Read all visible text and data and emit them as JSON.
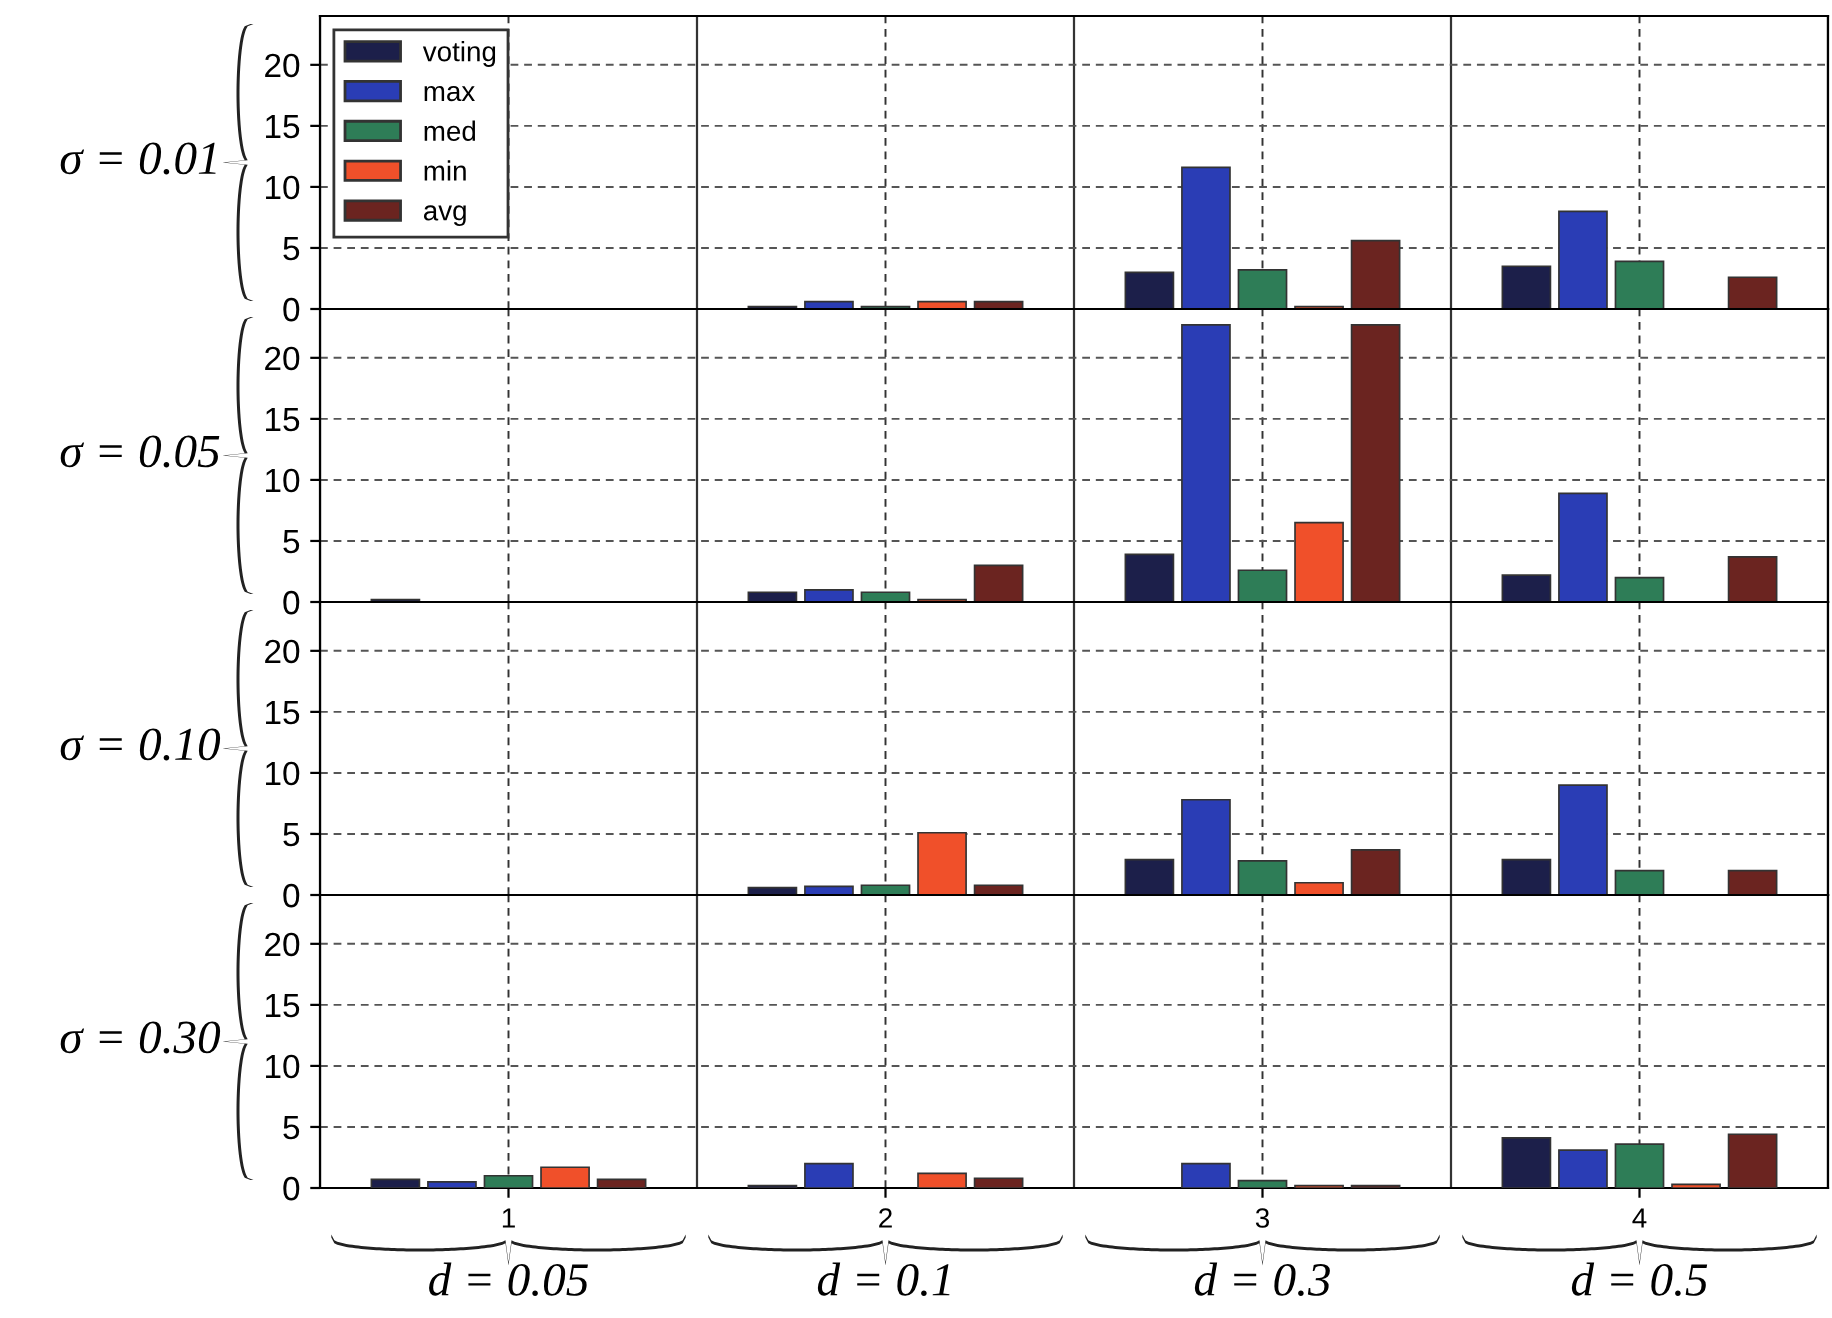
{
  "chart_data": [
    {
      "type": "bar",
      "ylabel": "σ = 0.01",
      "categories": [
        "1",
        "2",
        "3",
        "4"
      ],
      "ylim": [
        0,
        24
      ],
      "yticks": [
        0,
        5,
        10,
        15,
        20
      ],
      "grid": true,
      "legend": "top left",
      "tick_labels": "y",
      "series": [
        {
          "name": "voting",
          "color": "#1c1f4a",
          "values": [
            null,
            0.2,
            3.0,
            3.5
          ]
        },
        {
          "name": "max",
          "color": "#2a3db5",
          "values": [
            null,
            0.6,
            11.6,
            8.0
          ]
        },
        {
          "name": "med",
          "color": "#2e7d57",
          "values": [
            null,
            0.2,
            3.2,
            3.9
          ]
        },
        {
          "name": "min",
          "color": "#f0502a",
          "values": [
            null,
            0.6,
            0.2,
            null
          ]
        },
        {
          "name": "avg",
          "color": "#6b2420",
          "values": [
            null,
            0.6,
            5.6,
            2.6
          ]
        }
      ]
    },
    {
      "type": "bar",
      "ylabel": "σ = 0.05",
      "categories": [
        "1",
        "2",
        "3",
        "4"
      ],
      "ylim": [
        0,
        24
      ],
      "yticks": [
        0,
        5,
        10,
        15,
        20
      ],
      "grid": true,
      "tick_labels": "y",
      "series": [
        {
          "color": "#1c1f4a",
          "values": [
            0.2,
            0.8,
            3.9,
            2.2
          ]
        },
        {
          "color": "#2a3db5",
          "values": [
            null,
            1.0,
            22.7,
            8.9
          ]
        },
        {
          "color": "#2e7d57",
          "values": [
            null,
            0.8,
            2.6,
            2.0
          ]
        },
        {
          "color": "#f0502a",
          "values": [
            null,
            0.2,
            6.5,
            null
          ]
        },
        {
          "color": "#6b2420",
          "values": [
            null,
            3.0,
            22.7,
            3.7
          ]
        }
      ]
    },
    {
      "type": "bar",
      "ylabel": "σ = 0.10",
      "categories": [
        "1",
        "2",
        "3",
        "4"
      ],
      "ylim": [
        0,
        24
      ],
      "yticks": [
        0,
        5,
        10,
        15,
        20
      ],
      "grid": true,
      "tick_labels": "y",
      "series": [
        {
          "color": "#1c1f4a",
          "values": [
            null,
            0.6,
            2.9,
            2.9
          ]
        },
        {
          "color": "#2a3db5",
          "values": [
            null,
            0.7,
            7.8,
            9.0
          ]
        },
        {
          "color": "#2e7d57",
          "values": [
            null,
            0.8,
            2.8,
            2.0
          ]
        },
        {
          "color": "#f0502a",
          "values": [
            null,
            5.1,
            1.0,
            null
          ]
        },
        {
          "color": "#6b2420",
          "values": [
            null,
            0.8,
            3.7,
            2.0
          ]
        }
      ]
    },
    {
      "type": "bar",
      "ylabel": "σ = 0.30",
      "categories": [
        "1",
        "2",
        "3",
        "4"
      ],
      "ylim": [
        0,
        24
      ],
      "yticks": [
        0,
        5,
        10,
        15,
        20
      ],
      "grid": true,
      "annotations": [
        "d = 0.05",
        "d = 0.1",
        "d = 0.3",
        "d = 0.5"
      ],
      "series": [
        {
          "color": "#1c1f4a",
          "values": [
            0.7,
            0.2,
            null,
            4.1
          ]
        },
        {
          "color": "#2a3db5",
          "values": [
            0.5,
            2.0,
            2.0,
            3.1
          ]
        },
        {
          "color": "#2e7d57",
          "values": [
            1.0,
            null,
            0.6,
            3.6
          ]
        },
        {
          "color": "#f0502a",
          "values": [
            1.7,
            1.2,
            0.2,
            0.3
          ]
        },
        {
          "color": "#6b2420",
          "values": [
            0.7,
            0.8,
            0.2,
            4.4
          ]
        }
      ]
    }
  ]
}
